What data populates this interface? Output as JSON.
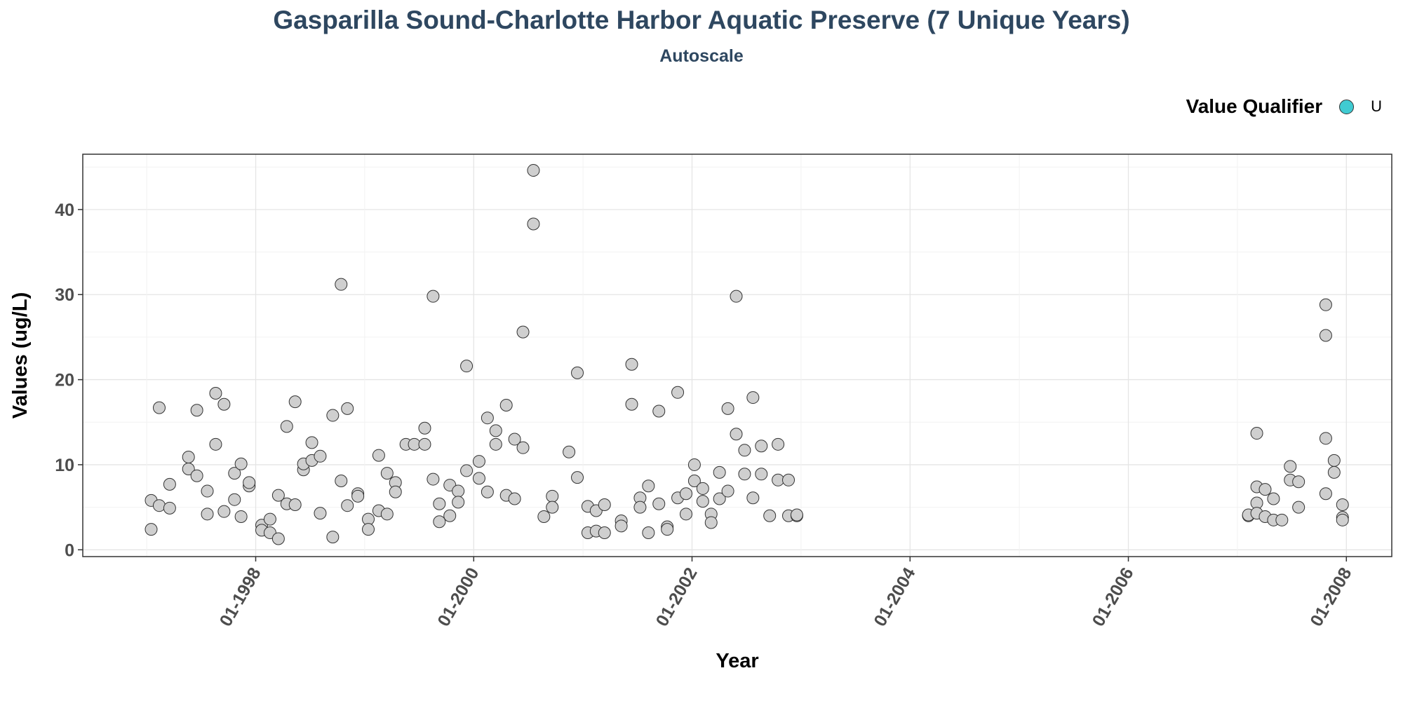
{
  "chart_data": {
    "type": "scatter",
    "title": "Gasparilla Sound-Charlotte Harbor Aquatic Preserve (7 Unique Years)",
    "subtitle": "Autoscale",
    "xlabel": "Year",
    "ylabel": "Values (ug/L)",
    "xlim": [
      "1996-06-01",
      "2008-06-01"
    ],
    "ylim": [
      -0.8,
      46.5
    ],
    "x_ticks": [
      "1998-01-01",
      "2000-01-01",
      "2002-01-01",
      "2004-01-01",
      "2006-01-01",
      "2008-01-01"
    ],
    "x_tick_labels": [
      "01-1998",
      "01-2000",
      "01-2002",
      "01-2004",
      "01-2006",
      "01-2008"
    ],
    "y_ticks": [
      0,
      10,
      20,
      30,
      40
    ],
    "grid": true,
    "legend": {
      "title": "Value Qualifier",
      "placement": "top-right",
      "items": [
        {
          "label": "U",
          "color": "#40cbd2"
        }
      ]
    },
    "point_fill": "#cfcfcf",
    "point_stroke": "#333333",
    "points": [
      {
        "x": "1997-01-16",
        "y": 2.4
      },
      {
        "x": "1997-01-16",
        "y": 5.8
      },
      {
        "x": "1997-02-12",
        "y": 16.7
      },
      {
        "x": "1997-02-12",
        "y": 5.2
      },
      {
        "x": "1997-03-19",
        "y": 4.9
      },
      {
        "x": "1997-03-19",
        "y": 7.7
      },
      {
        "x": "1997-05-21",
        "y": 9.5
      },
      {
        "x": "1997-05-21",
        "y": 10.9
      },
      {
        "x": "1997-06-18",
        "y": 16.4
      },
      {
        "x": "1997-06-18",
        "y": 8.7
      },
      {
        "x": "1997-07-23",
        "y": 6.9
      },
      {
        "x": "1997-07-23",
        "y": 4.2
      },
      {
        "x": "1997-08-20",
        "y": 18.4
      },
      {
        "x": "1997-08-20",
        "y": 12.4
      },
      {
        "x": "1997-09-17",
        "y": 17.1
      },
      {
        "x": "1997-09-17",
        "y": 4.5
      },
      {
        "x": "1997-10-22",
        "y": 9.0
      },
      {
        "x": "1997-10-22",
        "y": 5.9
      },
      {
        "x": "1997-11-13",
        "y": 10.1
      },
      {
        "x": "1997-11-13",
        "y": 3.9
      },
      {
        "x": "1997-12-10",
        "y": 7.5
      },
      {
        "x": "1997-12-10",
        "y": 7.9
      },
      {
        "x": "1998-01-21",
        "y": 2.9
      },
      {
        "x": "1998-01-21",
        "y": 2.3
      },
      {
        "x": "1998-02-18",
        "y": 3.6
      },
      {
        "x": "1998-02-18",
        "y": 2.0
      },
      {
        "x": "1998-03-18",
        "y": 6.4
      },
      {
        "x": "1998-03-18",
        "y": 1.3
      },
      {
        "x": "1998-04-15",
        "y": 14.5
      },
      {
        "x": "1998-04-15",
        "y": 5.4
      },
      {
        "x": "1998-05-13",
        "y": 17.4
      },
      {
        "x": "1998-05-13",
        "y": 5.3
      },
      {
        "x": "1998-06-10",
        "y": 9.4
      },
      {
        "x": "1998-06-10",
        "y": 10.1
      },
      {
        "x": "1998-07-08",
        "y": 12.6
      },
      {
        "x": "1998-07-08",
        "y": 10.5
      },
      {
        "x": "1998-08-05",
        "y": 11.0
      },
      {
        "x": "1998-08-05",
        "y": 4.3
      },
      {
        "x": "1998-09-16",
        "y": 15.8
      },
      {
        "x": "1998-09-16",
        "y": 1.5
      },
      {
        "x": "1998-10-14",
        "y": 31.2
      },
      {
        "x": "1998-10-14",
        "y": 8.1
      },
      {
        "x": "1998-11-04",
        "y": 16.6
      },
      {
        "x": "1998-11-04",
        "y": 5.2
      },
      {
        "x": "1998-12-09",
        "y": 6.6
      },
      {
        "x": "1998-12-09",
        "y": 6.3
      },
      {
        "x": "1999-01-13",
        "y": 3.6
      },
      {
        "x": "1999-01-13",
        "y": 2.4
      },
      {
        "x": "1999-02-17",
        "y": 11.1
      },
      {
        "x": "1999-02-17",
        "y": 4.6
      },
      {
        "x": "1999-03-17",
        "y": 9.0
      },
      {
        "x": "1999-03-17",
        "y": 4.2
      },
      {
        "x": "1999-04-14",
        "y": 7.9
      },
      {
        "x": "1999-04-14",
        "y": 6.8
      },
      {
        "x": "1999-05-19",
        "y": 12.4
      },
      {
        "x": "1999-06-16",
        "y": 12.4
      },
      {
        "x": "1999-07-21",
        "y": 14.3
      },
      {
        "x": "1999-07-21",
        "y": 12.4
      },
      {
        "x": "1999-08-18",
        "y": 29.8
      },
      {
        "x": "1999-08-18",
        "y": 8.3
      },
      {
        "x": "1999-09-08",
        "y": 5.4
      },
      {
        "x": "1999-09-08",
        "y": 3.3
      },
      {
        "x": "1999-10-13",
        "y": 7.6
      },
      {
        "x": "1999-10-13",
        "y": 4.0
      },
      {
        "x": "1999-11-10",
        "y": 6.9
      },
      {
        "x": "1999-11-10",
        "y": 5.6
      },
      {
        "x": "1999-12-08",
        "y": 21.6
      },
      {
        "x": "1999-12-08",
        "y": 9.3
      },
      {
        "x": "2000-01-19",
        "y": 10.4
      },
      {
        "x": "2000-01-19",
        "y": 8.4
      },
      {
        "x": "2000-02-16",
        "y": 15.5
      },
      {
        "x": "2000-02-16",
        "y": 6.8
      },
      {
        "x": "2000-03-15",
        "y": 14.0
      },
      {
        "x": "2000-03-15",
        "y": 12.4
      },
      {
        "x": "2000-04-19",
        "y": 17.0
      },
      {
        "x": "2000-04-19",
        "y": 6.4
      },
      {
        "x": "2000-05-17",
        "y": 13.0
      },
      {
        "x": "2000-05-17",
        "y": 6.0
      },
      {
        "x": "2000-06-14",
        "y": 25.6
      },
      {
        "x": "2000-06-14",
        "y": 12.0
      },
      {
        "x": "2000-07-19",
        "y": 44.6
      },
      {
        "x": "2000-07-19",
        "y": 38.3
      },
      {
        "x": "2000-08-23",
        "y": 3.9
      },
      {
        "x": "2000-09-20",
        "y": 6.3
      },
      {
        "x": "2000-09-20",
        "y": 5.0
      },
      {
        "x": "2000-11-15",
        "y": 11.5
      },
      {
        "x": "2000-12-13",
        "y": 20.8
      },
      {
        "x": "2000-12-13",
        "y": 8.5
      },
      {
        "x": "2001-01-17",
        "y": 5.1
      },
      {
        "x": "2001-01-17",
        "y": 2.0
      },
      {
        "x": "2001-02-14",
        "y": 4.6
      },
      {
        "x": "2001-02-14",
        "y": 2.2
      },
      {
        "x": "2001-03-14",
        "y": 5.3
      },
      {
        "x": "2001-03-14",
        "y": 2.0
      },
      {
        "x": "2001-05-09",
        "y": 3.4
      },
      {
        "x": "2001-05-09",
        "y": 2.8
      },
      {
        "x": "2001-06-13",
        "y": 21.8
      },
      {
        "x": "2001-06-13",
        "y": 17.1
      },
      {
        "x": "2001-07-11",
        "y": 6.1
      },
      {
        "x": "2001-07-11",
        "y": 5.0
      },
      {
        "x": "2001-08-08",
        "y": 7.5
      },
      {
        "x": "2001-08-08",
        "y": 2.0
      },
      {
        "x": "2001-09-12",
        "y": 16.3
      },
      {
        "x": "2001-09-12",
        "y": 5.4
      },
      {
        "x": "2001-10-10",
        "y": 2.7
      },
      {
        "x": "2001-10-10",
        "y": 2.4
      },
      {
        "x": "2001-11-14",
        "y": 18.5
      },
      {
        "x": "2001-11-14",
        "y": 6.1
      },
      {
        "x": "2001-12-12",
        "y": 6.6
      },
      {
        "x": "2001-12-12",
        "y": 4.2
      },
      {
        "x": "2002-01-09",
        "y": 10.0
      },
      {
        "x": "2002-01-09",
        "y": 8.1
      },
      {
        "x": "2002-02-06",
        "y": 7.2
      },
      {
        "x": "2002-02-06",
        "y": 5.7
      },
      {
        "x": "2002-03-06",
        "y": 4.2
      },
      {
        "x": "2002-03-06",
        "y": 3.2
      },
      {
        "x": "2002-04-03",
        "y": 9.1
      },
      {
        "x": "2002-04-03",
        "y": 6.0
      },
      {
        "x": "2002-05-01",
        "y": 16.6
      },
      {
        "x": "2002-05-01",
        "y": 6.9
      },
      {
        "x": "2002-05-29",
        "y": 29.8
      },
      {
        "x": "2002-05-29",
        "y": 13.6
      },
      {
        "x": "2002-06-26",
        "y": 11.7
      },
      {
        "x": "2002-06-26",
        "y": 8.9
      },
      {
        "x": "2002-07-24",
        "y": 17.9
      },
      {
        "x": "2002-07-24",
        "y": 6.1
      },
      {
        "x": "2002-08-21",
        "y": 12.2
      },
      {
        "x": "2002-08-21",
        "y": 8.9
      },
      {
        "x": "2002-09-18",
        "y": 4.0
      },
      {
        "x": "2002-10-16",
        "y": 12.4
      },
      {
        "x": "2002-10-16",
        "y": 8.2
      },
      {
        "x": "2002-11-20",
        "y": 8.2
      },
      {
        "x": "2002-11-20",
        "y": 4.0
      },
      {
        "x": "2002-12-18",
        "y": 4.0
      },
      {
        "x": "2002-12-18",
        "y": 4.1
      },
      {
        "x": "2007-02-07",
        "y": 4.0
      },
      {
        "x": "2007-02-07",
        "y": 4.1
      },
      {
        "x": "2007-03-07",
        "y": 13.7
      },
      {
        "x": "2007-03-07",
        "y": 7.4
      },
      {
        "x": "2007-03-07",
        "y": 5.5
      },
      {
        "x": "2007-03-07",
        "y": 4.3
      },
      {
        "x": "2007-04-04",
        "y": 7.1
      },
      {
        "x": "2007-04-04",
        "y": 3.9
      },
      {
        "x": "2007-05-02",
        "y": 6.0
      },
      {
        "x": "2007-05-02",
        "y": 3.5
      },
      {
        "x": "2007-05-30",
        "y": 3.5
      },
      {
        "x": "2007-06-27",
        "y": 9.8
      },
      {
        "x": "2007-06-27",
        "y": 8.2
      },
      {
        "x": "2007-07-25",
        "y": 8.0
      },
      {
        "x": "2007-07-25",
        "y": 5.0
      },
      {
        "x": "2007-10-24",
        "y": 28.8
      },
      {
        "x": "2007-10-24",
        "y": 25.2
      },
      {
        "x": "2007-10-24",
        "y": 13.1
      },
      {
        "x": "2007-10-24",
        "y": 6.6
      },
      {
        "x": "2007-11-21",
        "y": 10.5
      },
      {
        "x": "2007-11-21",
        "y": 9.1
      },
      {
        "x": "2007-12-19",
        "y": 5.3
      },
      {
        "x": "2007-12-19",
        "y": 3.8
      },
      {
        "x": "2007-12-19",
        "y": 3.5
      }
    ]
  }
}
